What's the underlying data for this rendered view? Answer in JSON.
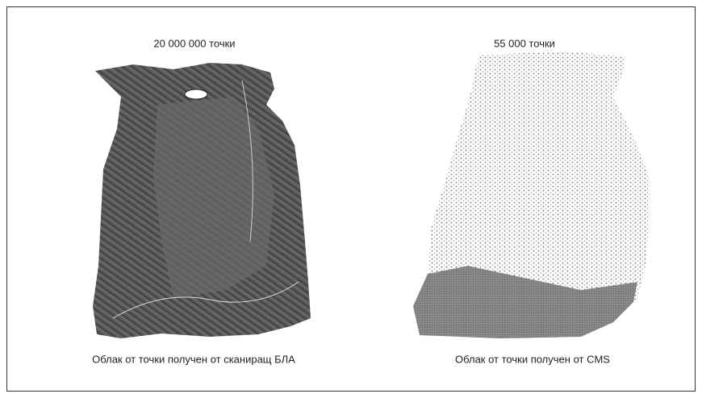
{
  "panels": [
    {
      "title": "20 000 000 точки",
      "caption": "Облак от точки получен от сканиращ БЛА"
    },
    {
      "title": "55 000 точки",
      "caption": "Облак от точки получен от CMS"
    }
  ]
}
